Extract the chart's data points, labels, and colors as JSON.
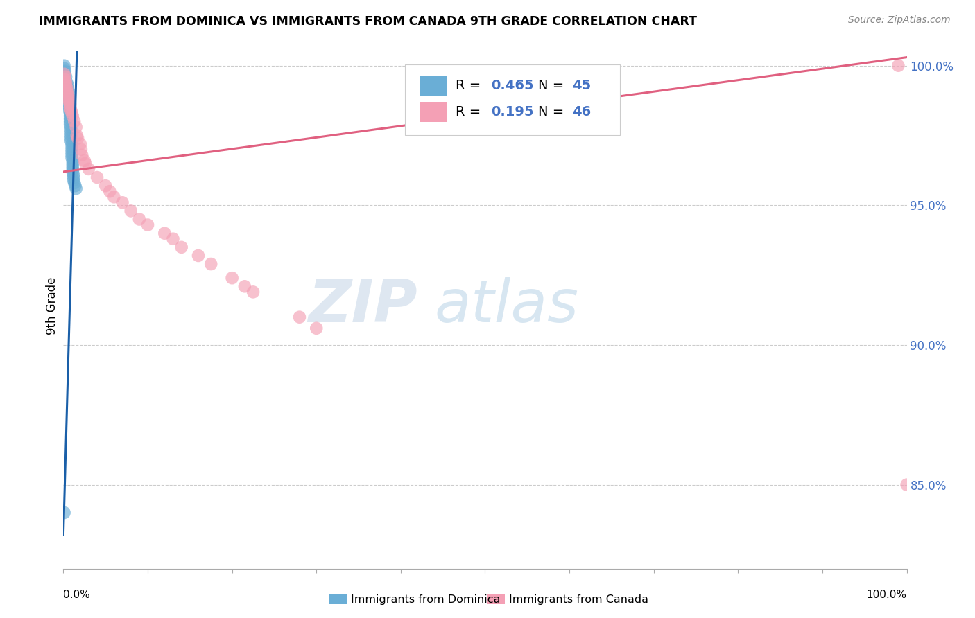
{
  "title": "IMMIGRANTS FROM DOMINICA VS IMMIGRANTS FROM CANADA 9TH GRADE CORRELATION CHART",
  "source": "Source: ZipAtlas.com",
  "ylabel": "9th Grade",
  "ytick_labels": [
    "85.0%",
    "90.0%",
    "95.0%",
    "100.0%"
  ],
  "yticks": [
    0.85,
    0.9,
    0.95,
    1.0
  ],
  "xlim": [
    0.0,
    1.0
  ],
  "ylim": [
    0.82,
    1.008
  ],
  "dominica_color": "#6aaed6",
  "canada_color": "#f4a0b5",
  "dominica_line_color": "#1a5fa8",
  "canada_line_color": "#e06080",
  "watermark_zip": "ZIP",
  "watermark_atlas": "atlas",
  "dominica_x": [
    0.001,
    0.001,
    0.002,
    0.002,
    0.003,
    0.004,
    0.005,
    0.005,
    0.006,
    0.006,
    0.006,
    0.007,
    0.007,
    0.007,
    0.007,
    0.007,
    0.008,
    0.008,
    0.008,
    0.008,
    0.008,
    0.009,
    0.009,
    0.009,
    0.009,
    0.009,
    0.009,
    0.01,
    0.01,
    0.01,
    0.01,
    0.01,
    0.01,
    0.011,
    0.011,
    0.011,
    0.011,
    0.011,
    0.012,
    0.012,
    0.012,
    0.013,
    0.014,
    0.015,
    0.001
  ],
  "dominica_y": [
    1.0,
    0.999,
    0.998,
    0.997,
    0.996,
    0.994,
    0.993,
    0.992,
    0.991,
    0.99,
    0.989,
    0.988,
    0.987,
    0.986,
    0.985,
    0.984,
    0.983,
    0.982,
    0.981,
    0.98,
    0.979,
    0.978,
    0.977,
    0.976,
    0.975,
    0.974,
    0.973,
    0.972,
    0.971,
    0.97,
    0.969,
    0.968,
    0.967,
    0.966,
    0.965,
    0.964,
    0.963,
    0.962,
    0.961,
    0.96,
    0.959,
    0.958,
    0.957,
    0.956,
    0.84
  ],
  "canada_x": [
    0.001,
    0.002,
    0.002,
    0.003,
    0.003,
    0.004,
    0.004,
    0.005,
    0.006,
    0.006,
    0.007,
    0.008,
    0.008,
    0.009,
    0.01,
    0.011,
    0.013,
    0.015,
    0.016,
    0.017,
    0.02,
    0.021,
    0.022,
    0.025,
    0.026,
    0.03,
    0.04,
    0.05,
    0.055,
    0.06,
    0.07,
    0.08,
    0.09,
    0.1,
    0.12,
    0.13,
    0.14,
    0.16,
    0.175,
    0.2,
    0.215,
    0.225,
    0.28,
    0.3,
    0.99,
    1.0
  ],
  "canada_y": [
    0.997,
    0.996,
    0.995,
    0.994,
    0.993,
    0.992,
    0.991,
    0.99,
    0.989,
    0.988,
    0.987,
    0.986,
    0.985,
    0.984,
    0.983,
    0.982,
    0.98,
    0.978,
    0.975,
    0.974,
    0.972,
    0.97,
    0.968,
    0.966,
    0.965,
    0.963,
    0.96,
    0.957,
    0.955,
    0.953,
    0.951,
    0.948,
    0.945,
    0.943,
    0.94,
    0.938,
    0.935,
    0.932,
    0.929,
    0.924,
    0.921,
    0.919,
    0.91,
    0.906,
    1.0,
    0.85
  ],
  "dom_line_x0": 0.0,
  "dom_line_x1": 0.016,
  "dom_line_y0": 0.832,
  "dom_line_y1": 1.005,
  "can_line_x0": 0.0,
  "can_line_x1": 1.0,
  "can_line_y0": 0.962,
  "can_line_y1": 1.003
}
